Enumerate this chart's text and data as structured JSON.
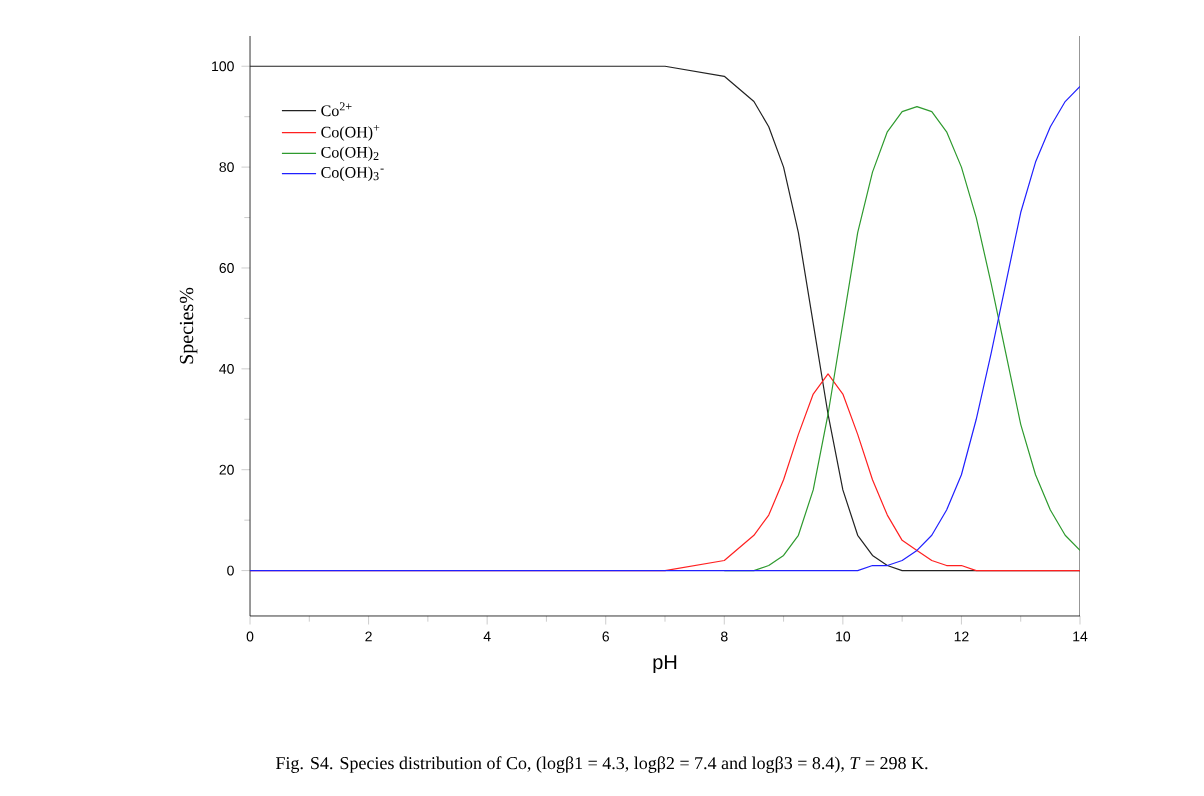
{
  "chart_data": {
    "type": "line",
    "xlabel": "pH",
    "ylabel": "Species%",
    "x": [
      0,
      6,
      7,
      7.5,
      8,
      8.5,
      8.75,
      9,
      9.25,
      9.5,
      9.75,
      10,
      10.25,
      10.5,
      10.75,
      11,
      11.25,
      11.5,
      11.75,
      12,
      12.25,
      12.5,
      12.75,
      13,
      13.25,
      13.5,
      13.75,
      14
    ],
    "series": [
      {
        "name": "Co$^{2+}$",
        "color": "#222222",
        "values": [
          100,
          100,
          100,
          99,
          98,
          93,
          88,
          80,
          67,
          49,
          31,
          16,
          7,
          3,
          1,
          0,
          0,
          0,
          0,
          0,
          0,
          0,
          0,
          0,
          0,
          0,
          0,
          0
        ]
      },
      {
        "name": "Co(OH)$^{+}$",
        "color": "#ff2020",
        "values": [
          0,
          0,
          0,
          1,
          2,
          7,
          11,
          18,
          27,
          35,
          39,
          35,
          27,
          18,
          11,
          6,
          4,
          2,
          1,
          1,
          0,
          0,
          0,
          0,
          0,
          0,
          0,
          0
        ]
      },
      {
        "name": "Co(OH)$_{2}$",
        "color": "#2e9a2e",
        "values": [
          null,
          null,
          null,
          null,
          0,
          0,
          1,
          3,
          7,
          16,
          31,
          49,
          67,
          79,
          87,
          91,
          92,
          91,
          87,
          80,
          70,
          57,
          43,
          29,
          19,
          12,
          7,
          4
        ]
      },
      {
        "name": "Co(OH)$_{3}$$^{-}$",
        "color": "#2020ff",
        "values": [
          0,
          0,
          0,
          0,
          0,
          0,
          0,
          0,
          0,
          0,
          0,
          0,
          0,
          1,
          1,
          2,
          4,
          7,
          12,
          19,
          30,
          43,
          57,
          71,
          81,
          88,
          93,
          96
        ]
      }
    ],
    "xlim": [
      0,
      14
    ],
    "ylim": [
      -9,
      106
    ],
    "xticks": [
      0,
      2,
      4,
      6,
      8,
      10,
      12,
      14
    ],
    "yticks": [
      0,
      20,
      40,
      60,
      80,
      100
    ],
    "legend": "top left",
    "marker": "none",
    "line_style": "solid",
    "annotations": [
      "Fig. S4. Species distribution of Co, (logβ1 = 4.3, logβ2 = 7.4 and logβ3 = 8.4), *T* = 298 K."
    ]
  }
}
